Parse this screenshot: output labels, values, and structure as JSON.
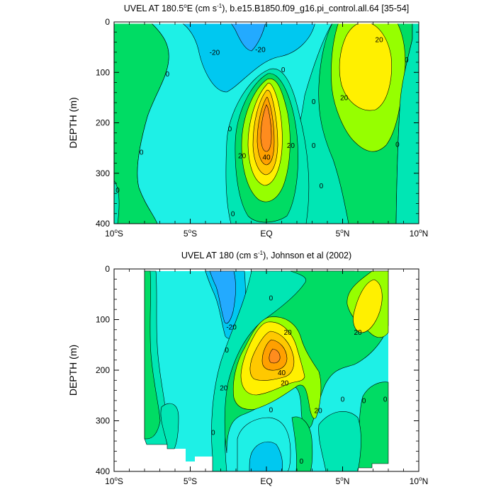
{
  "chart_data": [
    {
      "type": "contour",
      "title": {
        "pre": "UVEL AT 180.5",
        "sup1": "o",
        "mid1": "E (cm s",
        "sup2": "-1",
        "post": "), b.e15.B1850.f09_g16.pi_control.all.64 [35-54]"
      },
      "ylabel": "DEPTH (m)",
      "xlim": [
        -10,
        10
      ],
      "ylim": [
        0,
        400
      ],
      "y_inverted": true,
      "yticks": [
        {
          "value": 0,
          "label": "0"
        },
        {
          "value": 100,
          "label": "100"
        },
        {
          "value": 200,
          "label": "200"
        },
        {
          "value": 300,
          "label": "300"
        },
        {
          "value": 400,
          "label": "400"
        }
      ],
      "xticks": [
        {
          "value": -10,
          "label": "10",
          "sup": "o",
          "hemi": "S"
        },
        {
          "value": -5,
          "label": "5",
          "sup": "o",
          "hemi": "S"
        },
        {
          "value": 0,
          "label": "EQ",
          "sup": "",
          "hemi": ""
        },
        {
          "value": 5,
          "label": "5",
          "sup": "o",
          "hemi": "N"
        },
        {
          "value": 10,
          "label": "10",
          "sup": "o",
          "hemi": "N"
        }
      ],
      "contour_labels": [
        {
          "text": "-20",
          "lat": -3.4,
          "depth": 60
        },
        {
          "text": "-20",
          "lat": -0.4,
          "depth": 55
        },
        {
          "text": "0",
          "lat": -6.5,
          "depth": 103
        },
        {
          "text": "0",
          "lat": 1.1,
          "depth": 95
        },
        {
          "text": "20",
          "lat": 7.4,
          "depth": 35
        },
        {
          "text": "20",
          "lat": 5.1,
          "depth": 150
        },
        {
          "text": "0",
          "lat": 3.1,
          "depth": 158
        },
        {
          "text": "0",
          "lat": 9.2,
          "depth": 75
        },
        {
          "text": "0",
          "lat": -2.4,
          "depth": 212
        },
        {
          "text": "0",
          "lat": -8.2,
          "depth": 258
        },
        {
          "text": "0",
          "lat": -10,
          "depth": 333
        },
        {
          "text": "20",
          "lat": -1.6,
          "depth": 265
        },
        {
          "text": "40",
          "lat": 0.0,
          "depth": 268
        },
        {
          "text": "20",
          "lat": 1.6,
          "depth": 245
        },
        {
          "text": "0",
          "lat": 3.1,
          "depth": 245
        },
        {
          "text": "0",
          "lat": 3.6,
          "depth": 325
        },
        {
          "text": "0",
          "lat": 8.6,
          "depth": 243
        },
        {
          "text": "0",
          "lat": -2.2,
          "depth": 380
        }
      ]
    },
    {
      "type": "contour",
      "title": {
        "pre": "UVEL AT 180 (cm s",
        "sup1": "-1",
        "mid1": "), Johnson et al (2002)",
        "sup2": "",
        "post": ""
      },
      "ylabel": "DEPTH (m)",
      "xlim": [
        -10,
        10
      ],
      "ylim": [
        0,
        400
      ],
      "y_inverted": true,
      "yticks": [
        {
          "value": 0,
          "label": "0"
        },
        {
          "value": 100,
          "label": "100"
        },
        {
          "value": 200,
          "label": "200"
        },
        {
          "value": 300,
          "label": "300"
        },
        {
          "value": 400,
          "label": "400"
        }
      ],
      "xticks": [
        {
          "value": -10,
          "label": "10",
          "sup": "o",
          "hemi": "S"
        },
        {
          "value": -5,
          "label": "5",
          "sup": "o",
          "hemi": "S"
        },
        {
          "value": 0,
          "label": "EQ",
          "sup": "",
          "hemi": ""
        },
        {
          "value": 5,
          "label": "5",
          "sup": "o",
          "hemi": "N"
        },
        {
          "value": 10,
          "label": "10",
          "sup": "o",
          "hemi": "N"
        }
      ],
      "contour_labels": [
        {
          "text": "-20",
          "lat": -2.3,
          "depth": 115
        },
        {
          "text": "0",
          "lat": 0.3,
          "depth": 57
        },
        {
          "text": "20",
          "lat": 1.4,
          "depth": 125
        },
        {
          "text": "20",
          "lat": 6.0,
          "depth": 125
        },
        {
          "text": "0",
          "lat": -2.6,
          "depth": 160
        },
        {
          "text": "40",
          "lat": 1.0,
          "depth": 205
        },
        {
          "text": "20",
          "lat": 1.2,
          "depth": 225
        },
        {
          "text": "20",
          "lat": -2.8,
          "depth": 235
        },
        {
          "text": "20",
          "lat": 3.4,
          "depth": 280
        },
        {
          "text": "0",
          "lat": 0.3,
          "depth": 278
        },
        {
          "text": "0",
          "lat": 5.0,
          "depth": 257
        },
        {
          "text": "0",
          "lat": 6.4,
          "depth": 260
        },
        {
          "text": "0",
          "lat": 7.8,
          "depth": 257
        },
        {
          "text": "0",
          "lat": -3.5,
          "depth": 323
        },
        {
          "text": "0",
          "lat": 2.3,
          "depth": 380
        }
      ]
    }
  ]
}
